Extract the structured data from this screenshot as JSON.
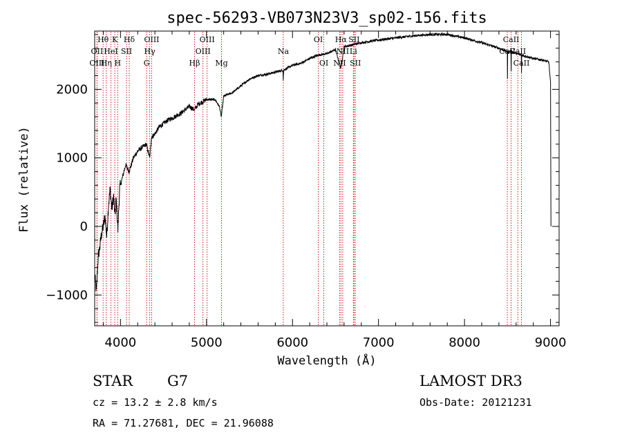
{
  "chart_data": {
    "type": "line",
    "title": "spec-56293-VB073N23V3_sp02-156.fits",
    "xlabel": "Wavelength (Å)",
    "ylabel": "Flux (relative)",
    "xlim": [
      3700,
      9100
    ],
    "ylim": [
      -1450,
      2850
    ],
    "x_ticks": [
      4000,
      5000,
      6000,
      7000,
      8000,
      9000
    ],
    "y_ticks": [
      -1000,
      0,
      1000,
      2000
    ],
    "series_color": "#000000",
    "marker_color": "#cc0000",
    "flux_keypoints": [
      [
        3700,
        -700
      ],
      [
        3720,
        -950
      ],
      [
        3740,
        -450
      ],
      [
        3760,
        -300
      ],
      [
        3780,
        -100
      ],
      [
        3800,
        0
      ],
      [
        3820,
        150
      ],
      [
        3840,
        -150
      ],
      [
        3860,
        300
      ],
      [
        3880,
        550
      ],
      [
        3900,
        250
      ],
      [
        3920,
        450
      ],
      [
        3935,
        150
      ],
      [
        3950,
        400
      ],
      [
        3970,
        -50
      ],
      [
        3990,
        550
      ],
      [
        4020,
        700
      ],
      [
        4060,
        900
      ],
      [
        4101,
        800
      ],
      [
        4150,
        1000
      ],
      [
        4200,
        1100
      ],
      [
        4250,
        1150
      ],
      [
        4300,
        1200
      ],
      [
        4340,
        1000
      ],
      [
        4360,
        1300
      ],
      [
        4400,
        1350
      ],
      [
        4450,
        1450
      ],
      [
        4500,
        1500
      ],
      [
        4550,
        1550
      ],
      [
        4600,
        1580
      ],
      [
        4700,
        1650
      ],
      [
        4800,
        1750
      ],
      [
        4861,
        1700
      ],
      [
        4900,
        1780
      ],
      [
        5000,
        1850
      ],
      [
        5100,
        1850
      ],
      [
        5150,
        1750
      ],
      [
        5172,
        1600
      ],
      [
        5200,
        1900
      ],
      [
        5300,
        1950
      ],
      [
        5400,
        2050
      ],
      [
        5500,
        2150
      ],
      [
        5600,
        2200
      ],
      [
        5700,
        2220
      ],
      [
        5800,
        2250
      ],
      [
        5890,
        2280
      ],
      [
        5893,
        2100
      ],
      [
        5896,
        2280
      ],
      [
        6000,
        2350
      ],
      [
        6100,
        2380
      ],
      [
        6200,
        2450
      ],
      [
        6300,
        2500
      ],
      [
        6400,
        2520
      ],
      [
        6500,
        2580
      ],
      [
        6563,
        2300
      ],
      [
        6600,
        2620
      ],
      [
        6700,
        2650
      ],
      [
        6800,
        2680
      ],
      [
        6900,
        2700
      ],
      [
        7000,
        2720
      ],
      [
        7200,
        2750
      ],
      [
        7400,
        2780
      ],
      [
        7600,
        2800
      ],
      [
        7800,
        2800
      ],
      [
        8000,
        2750
      ],
      [
        8200,
        2680
      ],
      [
        8400,
        2600
      ],
      [
        8498,
        2550
      ],
      [
        8500,
        2150
      ],
      [
        8502,
        2550
      ],
      [
        8540,
        2550
      ],
      [
        8542,
        2150
      ],
      [
        8544,
        2550
      ],
      [
        8660,
        2500
      ],
      [
        8662,
        2150
      ],
      [
        8664,
        2500
      ],
      [
        8800,
        2450
      ],
      [
        8900,
        2430
      ],
      [
        8980,
        2400
      ],
      [
        9000,
        2100
      ],
      [
        9005,
        0
      ]
    ],
    "spectral_lines": [
      {
        "label": "Hθ",
        "x": 3798,
        "row": 1
      },
      {
        "label": "K",
        "x": 3934,
        "row": 1
      },
      {
        "label": "Hδ",
        "x": 4102,
        "row": 1
      },
      {
        "label": "OIII",
        "x": 4363,
        "row": 1
      },
      {
        "label": "OIII",
        "x": 5007,
        "row": 1
      },
      {
        "label": "OI",
        "x": 6300,
        "row": 1
      },
      {
        "label": "Hα",
        "x": 6563,
        "row": 1
      },
      {
        "label": "SII",
        "x": 6716,
        "row": 1
      },
      {
        "label": "CaII",
        "x": 8542,
        "row": 1
      },
      {
        "label": "OII",
        "x": 3727,
        "row": 2
      },
      {
        "label": "HeI",
        "x": 3889,
        "row": 2
      },
      {
        "label": "SII",
        "x": 4070,
        "row": 2
      },
      {
        "label": "Hγ",
        "x": 4340,
        "row": 2
      },
      {
        "label": "OIII",
        "x": 4959,
        "row": 2
      },
      {
        "label": "Na",
        "x": 5893,
        "row": 2
      },
      {
        "label": "NII",
        "x": 6584,
        "row": 2
      },
      {
        "label": "Li",
        "x": 6708,
        "row": 2
      },
      {
        "label": "CaII",
        "x": 8498,
        "row": 2
      },
      {
        "label": "CaII",
        "x": 8620,
        "row": 2
      },
      {
        "label": "OIII",
        "x": 3727,
        "row": 3
      },
      {
        "label": "Hη",
        "x": 3835,
        "row": 3
      },
      {
        "label": "H",
        "x": 3968,
        "row": 3
      },
      {
        "label": "G",
        "x": 4304,
        "row": 3
      },
      {
        "label": "Hβ",
        "x": 4861,
        "row": 3
      },
      {
        "label": "Mg",
        "x": 5175,
        "row": 3
      },
      {
        "label": "OI",
        "x": 6364,
        "row": 3
      },
      {
        "label": "NII",
        "x": 6548,
        "row": 3
      },
      {
        "label": "SII",
        "x": 6731,
        "row": 3
      },
      {
        "label": "CaII",
        "x": 8662,
        "row": 3
      }
    ]
  },
  "info": {
    "class_label": "STAR",
    "subclass": "G7",
    "redshift": "cz = 13.2 ± 2.8 km/s",
    "coords": "RA =  71.27681, DEC =  21.96088",
    "survey": "LAMOST DR3",
    "obs_date": "Obs-Date: 20121231"
  }
}
